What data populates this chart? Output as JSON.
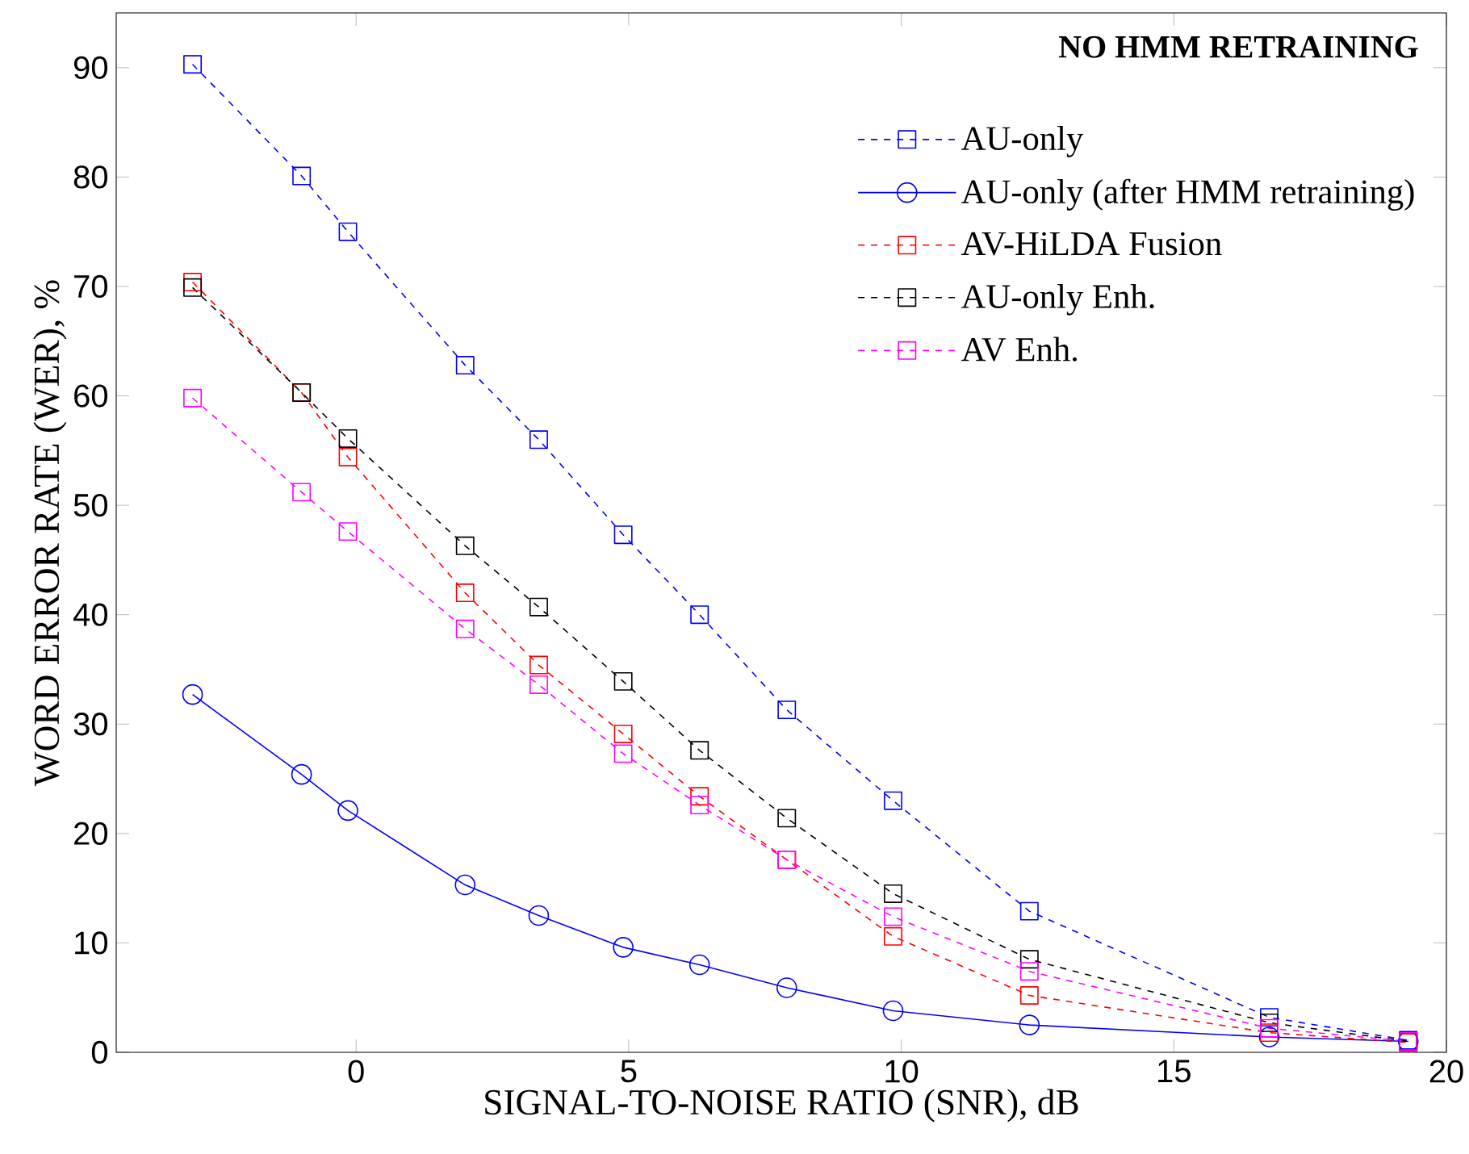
{
  "chart_data": {
    "type": "line",
    "title": "NO HMM RETRAINING",
    "xlabel": "SIGNAL-TO-NOISE  RATIO  (SNR),  dB",
    "ylabel": "WORD  ERROR  RATE  (WER),  %",
    "x": [
      -3,
      -1,
      -0.15,
      2,
      3.35,
      4.9,
      6.3,
      7.9,
      9.85,
      12.35,
      16.75,
      19.3
    ],
    "series": [
      {
        "name": "AU-only",
        "color": "#0000ff",
        "marker": "square",
        "line_style": "dashed",
        "values": [
          90.3,
          80.1,
          75,
          62.8,
          56,
          47.3,
          40,
          31.3,
          23,
          12.9,
          3.2,
          1.1
        ]
      },
      {
        "name": "AU-only (after HMM retraining)",
        "color": "#0000ff",
        "marker": "circle",
        "line_style": "solid",
        "values": [
          32.7,
          25.4,
          22.1,
          15.3,
          12.5,
          9.6,
          8,
          5.9,
          3.8,
          2.5,
          1.4,
          1.0
        ]
      },
      {
        "name": "AV-HiLDA Fusion",
        "color": "#ff0000",
        "marker": "square",
        "line_style": "dashed",
        "values": [
          70.4,
          60.3,
          54.4,
          42,
          35.4,
          29.1,
          23.4,
          17.6,
          10.6,
          5.2,
          1.8,
          0.9
        ]
      },
      {
        "name": "AU-only Enh.",
        "color": "#000000",
        "marker": "square",
        "line_style": "dashed",
        "values": [
          69.9,
          60.3,
          56.1,
          46.3,
          40.7,
          33.9,
          27.6,
          21.4,
          14.5,
          8.5,
          2.7,
          1.0
        ]
      },
      {
        "name": "AV Enh.",
        "color": "#ff00ff",
        "marker": "square",
        "line_style": "dashed",
        "values": [
          59.8,
          51.2,
          47.6,
          38.7,
          33.6,
          27.3,
          22.6,
          17.6,
          12.4,
          7.4,
          2.2,
          1.0
        ]
      }
    ],
    "xlim": [
      -4.4,
      20
    ],
    "ylim": [
      0,
      95
    ],
    "xticks": [
      0,
      5,
      10,
      15,
      20
    ],
    "yticks": [
      0,
      10,
      20,
      30,
      40,
      50,
      60,
      70,
      80,
      90
    ],
    "grid": false,
    "legend": "top right"
  }
}
